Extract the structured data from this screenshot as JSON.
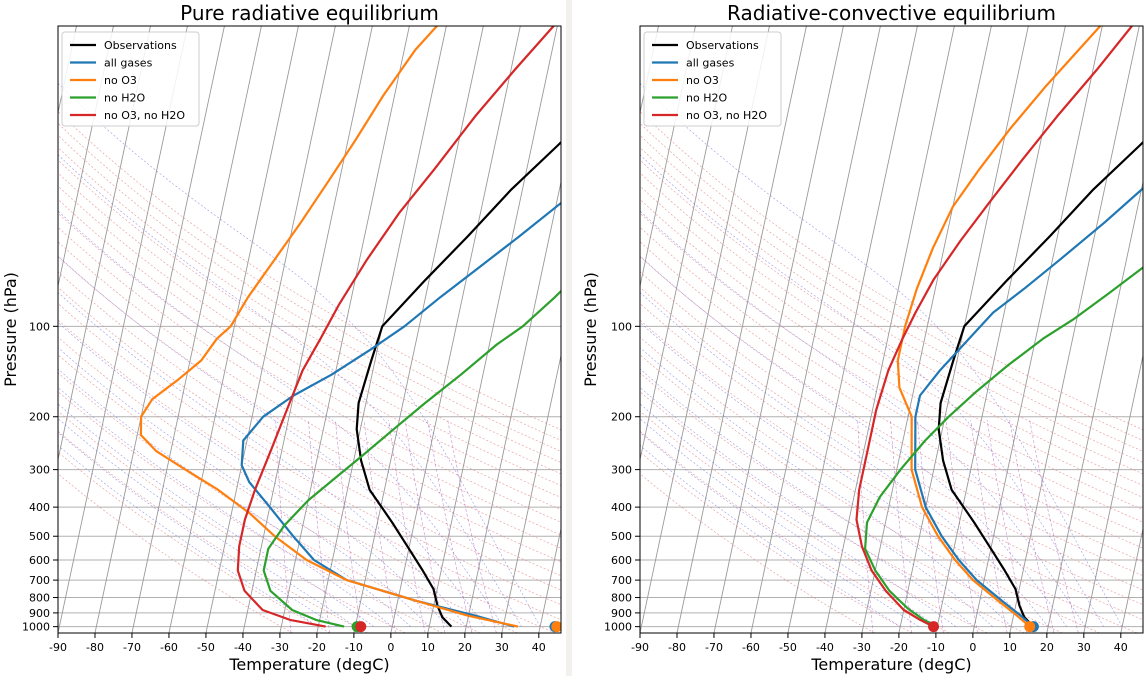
{
  "chart_data": [
    {
      "type": "line",
      "title": "Pure radiative equilibrium",
      "xlabel": "Temperature (degC)",
      "ylabel": "Pressure (hPa)",
      "x_ticks": [
        -90,
        -80,
        -70,
        -60,
        -50,
        -40,
        -30,
        -20,
        -10,
        0,
        10,
        20,
        30,
        40
      ],
      "y_ticks": [
        100,
        200,
        300,
        400,
        500,
        600,
        700,
        800,
        900,
        1000
      ],
      "xlim": [
        -90,
        46
      ],
      "ylim": [
        1050,
        10
      ],
      "y_scale": "log",
      "skew_t": true,
      "legend_position": "top-left",
      "series": [
        {
          "name": "Observations",
          "color": "#000000",
          "points": [
            [
              16,
              1000
            ],
            [
              13,
              930
            ],
            [
              11,
              850
            ],
            [
              9,
              750
            ],
            [
              5,
              650
            ],
            [
              0,
              550
            ],
            [
              -6,
              450
            ],
            [
              -14,
              350
            ],
            [
              -18,
              280
            ],
            [
              -21,
              220
            ],
            [
              -22,
              180
            ],
            [
              -21,
              130
            ],
            [
              -20,
              100
            ],
            [
              -11,
              70
            ],
            [
              -2,
              50
            ],
            [
              7,
              35
            ],
            [
              17,
              25
            ],
            [
              28,
              17
            ],
            [
              38,
              12
            ],
            [
              46,
              9
            ]
          ]
        },
        {
          "name": "all gases",
          "color": "#1f77b4",
          "points": [
            [
              33,
              1000
            ],
            [
              22,
              920
            ],
            [
              5,
              820
            ],
            [
              -15,
              700
            ],
            [
              -25,
              600
            ],
            [
              -32,
              500
            ],
            [
              -40,
              400
            ],
            [
              -47,
              330
            ],
            [
              -50,
              290
            ],
            [
              -51,
              240
            ],
            [
              -47,
              200
            ],
            [
              -40,
              170
            ],
            [
              -31,
              145
            ],
            [
              -22,
              120
            ],
            [
              -14,
              100
            ],
            [
              -6,
              80
            ],
            [
              2,
              65
            ],
            [
              12,
              50
            ],
            [
              22,
              38
            ],
            [
              32,
              28
            ],
            [
              41,
              20
            ],
            [
              46,
              17
            ]
          ]
        },
        {
          "name": "no O3",
          "color": "#ff7f0e",
          "points": [
            [
              34,
              1000
            ],
            [
              20,
              920
            ],
            [
              5,
              820
            ],
            [
              -15,
              700
            ],
            [
              -27,
              600
            ],
            [
              -37,
              500
            ],
            [
              -45,
              420
            ],
            [
              -55,
              350
            ],
            [
              -65,
              300
            ],
            [
              -74,
              260
            ],
            [
              -79,
              230
            ],
            [
              -80,
              200
            ],
            [
              -78,
              175
            ],
            [
              -72,
              150
            ],
            [
              -67,
              130
            ],
            [
              -64,
              110
            ],
            [
              -61,
              100
            ],
            [
              -58,
              80
            ],
            [
              -53,
              60
            ],
            [
              -48,
              45
            ],
            [
              -43,
              33
            ],
            [
              -38,
              24
            ],
            [
              -33,
              17
            ],
            [
              -27,
              12
            ],
            [
              -20,
              9
            ]
          ]
        },
        {
          "name": "no H2O",
          "color": "#2ca02c",
          "points": [
            [
              -13,
              1000
            ],
            [
              -21,
              950
            ],
            [
              -28,
              880
            ],
            [
              -35,
              760
            ],
            [
              -38,
              650
            ],
            [
              -38,
              550
            ],
            [
              -35,
              460
            ],
            [
              -30,
              380
            ],
            [
              -24,
              320
            ],
            [
              -18,
              270
            ],
            [
              -11,
              220
            ],
            [
              -4,
              180
            ],
            [
              4,
              145
            ],
            [
              12,
              115
            ],
            [
              18,
              100
            ],
            [
              25,
              80
            ],
            [
              33,
              60
            ],
            [
              41,
              45
            ],
            [
              46,
              38
            ]
          ]
        },
        {
          "name": "no O3, no H2O",
          "color": "#d62728",
          "points": [
            [
              -18,
              1000
            ],
            [
              -28,
              950
            ],
            [
              -36,
              880
            ],
            [
              -42,
              760
            ],
            [
              -45,
              650
            ],
            [
              -46,
              540
            ],
            [
              -46,
              440
            ],
            [
              -45,
              350
            ],
            [
              -43,
              260
            ],
            [
              -41,
              190
            ],
            [
              -39,
              140
            ],
            [
              -36,
              110
            ],
            [
              -33,
              85
            ],
            [
              -28,
              60
            ],
            [
              -22,
              42
            ],
            [
              -15,
              30
            ],
            [
              -7,
              20
            ],
            [
              1,
              14
            ],
            [
              9,
              10
            ],
            [
              13,
              9
            ]
          ]
        }
      ],
      "surface_markers": [
        {
          "series": "all gases",
          "x": 44,
          "y": 1000,
          "color": "#1f77b4"
        },
        {
          "series": "no O3",
          "x": 44.5,
          "y": 1000,
          "color": "#ff7f0e"
        },
        {
          "series": "no H2O",
          "x": -9.5,
          "y": 1000,
          "color": "#2ca02c"
        },
        {
          "series": "no O3, no H2O",
          "x": -8.5,
          "y": 1000,
          "color": "#d62728"
        }
      ]
    },
    {
      "type": "line",
      "title": "Radiative-convective equilibrium",
      "xlabel": "Temperature (degC)",
      "ylabel": "Pressure (hPa)",
      "x_ticks": [
        -90,
        -80,
        -70,
        -60,
        -50,
        -40,
        -30,
        -20,
        -10,
        0,
        10,
        20,
        30,
        40
      ],
      "y_ticks": [
        100,
        200,
        300,
        400,
        500,
        600,
        700,
        800,
        900,
        1000
      ],
      "xlim": [
        -90,
        46
      ],
      "ylim": [
        1050,
        10
      ],
      "y_scale": "log",
      "skew_t": true,
      "legend_position": "top-left",
      "series": [
        {
          "name": "Observations",
          "color": "#000000",
          "points": [
            [
              16,
              1000
            ],
            [
              13,
              930
            ],
            [
              11,
              850
            ],
            [
              9,
              750
            ],
            [
              5,
              650
            ],
            [
              0,
              550
            ],
            [
              -6,
              450
            ],
            [
              -14,
              350
            ],
            [
              -18,
              280
            ],
            [
              -21,
              220
            ],
            [
              -22,
              180
            ],
            [
              -21,
              130
            ],
            [
              -20,
              100
            ],
            [
              -11,
              70
            ],
            [
              -2,
              50
            ],
            [
              7,
              35
            ],
            [
              17,
              25
            ],
            [
              28,
              17
            ],
            [
              38,
              12
            ],
            [
              46,
              9
            ]
          ]
        },
        {
          "name": "all gases",
          "color": "#1f77b4",
          "points": [
            [
              16,
              1000
            ],
            [
              12,
              920
            ],
            [
              6,
              820
            ],
            [
              -2,
              700
            ],
            [
              -8,
              600
            ],
            [
              -14,
              500
            ],
            [
              -20,
              400
            ],
            [
              -25,
              300
            ],
            [
              -28,
              200
            ],
            [
              -28,
              170
            ],
            [
              -24,
              140
            ],
            [
              -18,
              110
            ],
            [
              -13,
              90
            ],
            [
              -6,
              75
            ],
            [
              2,
              60
            ],
            [
              12,
              45
            ],
            [
              22,
              33
            ],
            [
              32,
              24
            ],
            [
              41,
              17
            ],
            [
              46,
              14
            ]
          ]
        },
        {
          "name": "no O3",
          "color": "#ff7f0e",
          "points": [
            [
              15,
              1000
            ],
            [
              11,
              920
            ],
            [
              5,
              820
            ],
            [
              -3,
              700
            ],
            [
              -9,
              600
            ],
            [
              -15,
              500
            ],
            [
              -21,
              400
            ],
            [
              -26,
              300
            ],
            [
              -29,
              200
            ],
            [
              -34,
              160
            ],
            [
              -36,
              130
            ],
            [
              -36,
              100
            ],
            [
              -35,
              75
            ],
            [
              -33,
              55
            ],
            [
              -30,
              40
            ],
            [
              -25,
              30
            ],
            [
              -19,
              22
            ],
            [
              -12,
              16
            ],
            [
              -5,
              12
            ],
            [
              2,
              9
            ]
          ]
        },
        {
          "name": "no H2O",
          "color": "#2ca02c",
          "points": [
            [
              -10,
              1000
            ],
            [
              -14,
              950
            ],
            [
              -19,
              870
            ],
            [
              -25,
              760
            ],
            [
              -30,
              650
            ],
            [
              -34,
              550
            ],
            [
              -35,
              450
            ],
            [
              -33,
              370
            ],
            [
              -29,
              300
            ],
            [
              -24,
              240
            ],
            [
              -19,
              200
            ],
            [
              -13,
              165
            ],
            [
              -6,
              135
            ],
            [
              2,
              110
            ],
            [
              9,
              95
            ],
            [
              17,
              78
            ],
            [
              26,
              62
            ],
            [
              35,
              48
            ],
            [
              43,
              38
            ],
            [
              46,
              35
            ]
          ]
        },
        {
          "name": "no O3, no H2O",
          "color": "#d62728",
          "points": [
            [
              -11,
              1000
            ],
            [
              -15,
              950
            ],
            [
              -20,
              880
            ],
            [
              -26,
              760
            ],
            [
              -31,
              650
            ],
            [
              -35,
              540
            ],
            [
              -38,
              440
            ],
            [
              -39,
              350
            ],
            [
              -39,
              260
            ],
            [
              -39,
              190
            ],
            [
              -38,
              140
            ],
            [
              -36,
              110
            ],
            [
              -34,
              90
            ],
            [
              -31,
              70
            ],
            [
              -26,
              52
            ],
            [
              -20,
              38
            ],
            [
              -14,
              28
            ],
            [
              -7,
              20
            ],
            [
              1,
              14
            ],
            [
              8,
              10
            ],
            [
              11,
              9
            ]
          ]
        }
      ],
      "surface_markers": [
        {
          "series": "all gases",
          "x": 16,
          "y": 1000,
          "color": "#1f77b4"
        },
        {
          "series": "no O3",
          "x": 15,
          "y": 1000,
          "color": "#ff7f0e"
        },
        {
          "series": "no O3, no H2O",
          "x": -11,
          "y": 1000,
          "color": "#d62728"
        }
      ]
    }
  ]
}
